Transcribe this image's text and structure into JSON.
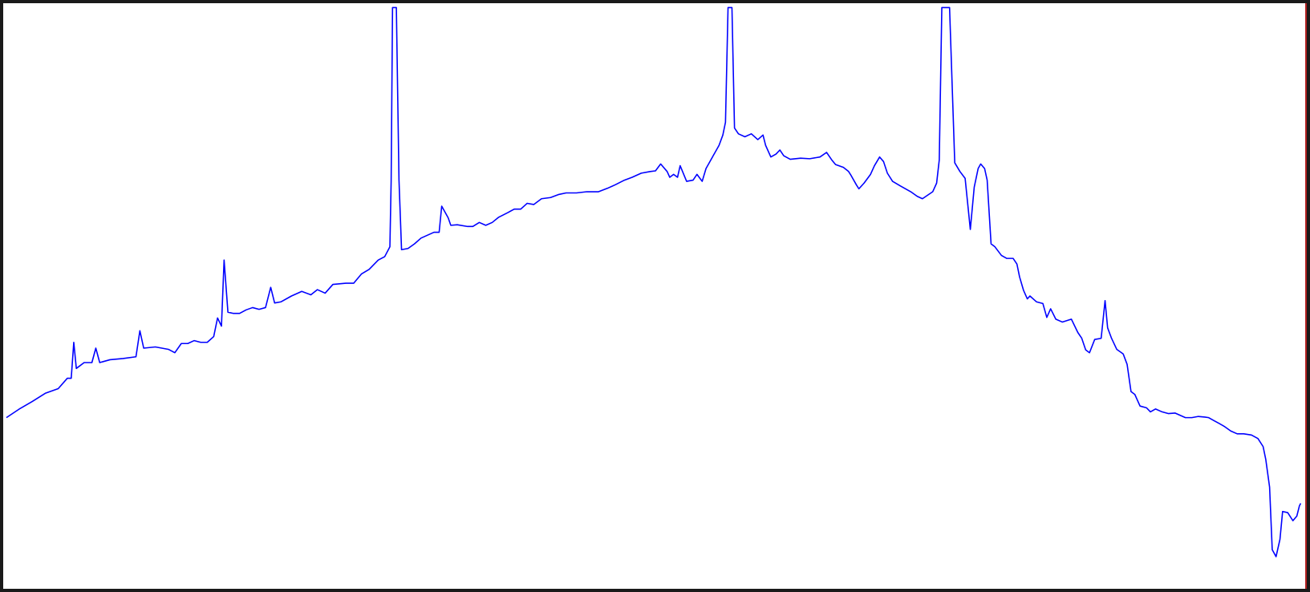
{
  "chart_data": {
    "type": "line",
    "title": "",
    "xlabel": "",
    "ylabel": "",
    "grid": false,
    "legend": "none",
    "xlim": [
      0,
      1000
    ],
    "ylim": [
      0,
      1000
    ],
    "series": [
      {
        "color": "#0000ff",
        "points": [
          [
            0,
            290
          ],
          [
            10,
            305
          ],
          [
            20,
            318
          ],
          [
            30,
            332
          ],
          [
            40,
            340
          ],
          [
            47,
            358
          ],
          [
            50,
            358
          ],
          [
            52,
            420
          ],
          [
            54,
            375
          ],
          [
            60,
            385
          ],
          [
            66,
            385
          ],
          [
            69,
            410
          ],
          [
            72,
            385
          ],
          [
            80,
            390
          ],
          [
            90,
            392
          ],
          [
            100,
            395
          ],
          [
            103,
            440
          ],
          [
            106,
            410
          ],
          [
            115,
            412
          ],
          [
            125,
            408
          ],
          [
            130,
            402
          ],
          [
            135,
            418
          ],
          [
            140,
            418
          ],
          [
            145,
            423
          ],
          [
            150,
            420
          ],
          [
            155,
            420
          ],
          [
            160,
            430
          ],
          [
            163,
            462
          ],
          [
            166,
            448
          ],
          [
            168,
            562
          ],
          [
            171,
            472
          ],
          [
            175,
            470
          ],
          [
            180,
            470
          ],
          [
            185,
            476
          ],
          [
            190,
            480
          ],
          [
            195,
            477
          ],
          [
            200,
            480
          ],
          [
            204,
            515
          ],
          [
            207,
            488
          ],
          [
            212,
            490
          ],
          [
            220,
            500
          ],
          [
            228,
            508
          ],
          [
            235,
            502
          ],
          [
            240,
            511
          ],
          [
            246,
            505
          ],
          [
            252,
            520
          ],
          [
            262,
            522
          ],
          [
            268,
            522
          ],
          [
            274,
            538
          ],
          [
            280,
            546
          ],
          [
            287,
            562
          ],
          [
            292,
            568
          ],
          [
            296,
            585
          ],
          [
            297,
            700
          ],
          [
            298,
            998
          ],
          [
            301,
            998
          ],
          [
            303,
            700
          ],
          [
            305,
            580
          ],
          [
            310,
            582
          ],
          [
            315,
            590
          ],
          [
            320,
            600
          ],
          [
            330,
            610
          ],
          [
            334,
            610
          ],
          [
            336,
            655
          ],
          [
            341,
            635
          ],
          [
            343,
            622
          ],
          [
            348,
            623
          ],
          [
            356,
            620
          ],
          [
            360,
            620
          ],
          [
            365,
            627
          ],
          [
            370,
            622
          ],
          [
            375,
            627
          ],
          [
            380,
            636
          ],
          [
            387,
            644
          ],
          [
            392,
            650
          ],
          [
            397,
            650
          ],
          [
            402,
            660
          ],
          [
            407,
            658
          ],
          [
            413,
            668
          ],
          [
            420,
            670
          ],
          [
            426,
            675
          ],
          [
            432,
            678
          ],
          [
            440,
            678
          ],
          [
            448,
            680
          ],
          [
            457,
            680
          ],
          [
            464,
            686
          ],
          [
            470,
            692
          ],
          [
            477,
            700
          ],
          [
            483,
            705
          ],
          [
            490,
            712
          ],
          [
            497,
            715
          ],
          [
            501,
            716
          ],
          [
            505,
            728
          ],
          [
            510,
            715
          ],
          [
            512,
            705
          ],
          [
            515,
            710
          ],
          [
            518,
            705
          ],
          [
            520,
            725
          ],
          [
            525,
            698
          ],
          [
            530,
            700
          ],
          [
            533,
            710
          ],
          [
            537,
            698
          ],
          [
            540,
            720
          ],
          [
            545,
            740
          ],
          [
            550,
            760
          ],
          [
            553,
            778
          ],
          [
            555,
            800
          ],
          [
            557,
            998
          ],
          [
            560,
            998
          ],
          [
            562,
            790
          ],
          [
            565,
            780
          ],
          [
            570,
            775
          ],
          [
            575,
            780
          ],
          [
            580,
            770
          ],
          [
            584,
            778
          ],
          [
            586,
            760
          ],
          [
            590,
            740
          ],
          [
            594,
            745
          ],
          [
            597,
            752
          ],
          [
            600,
            742
          ],
          [
            605,
            736
          ],
          [
            613,
            738
          ],
          [
            620,
            737
          ],
          [
            628,
            740
          ],
          [
            633,
            748
          ],
          [
            637,
            735
          ],
          [
            640,
            727
          ],
          [
            646,
            722
          ],
          [
            650,
            715
          ],
          [
            652,
            708
          ],
          [
            656,
            692
          ],
          [
            658,
            685
          ],
          [
            662,
            695
          ],
          [
            667,
            710
          ],
          [
            670,
            725
          ],
          [
            674,
            740
          ],
          [
            677,
            732
          ],
          [
            680,
            712
          ],
          [
            684,
            698
          ],
          [
            690,
            690
          ],
          [
            698,
            680
          ],
          [
            703,
            672
          ],
          [
            707,
            668
          ],
          [
            715,
            680
          ],
          [
            718,
            695
          ],
          [
            720,
            735
          ],
          [
            722,
            998
          ],
          [
            728,
            998
          ],
          [
            732,
            730
          ],
          [
            736,
            715
          ],
          [
            740,
            703
          ],
          [
            744,
            615
          ],
          [
            747,
            688
          ],
          [
            750,
            720
          ],
          [
            752,
            728
          ],
          [
            755,
            720
          ],
          [
            757,
            700
          ],
          [
            760,
            590
          ],
          [
            763,
            585
          ],
          [
            768,
            570
          ],
          [
            772,
            565
          ],
          [
            777,
            565
          ],
          [
            780,
            555
          ],
          [
            782,
            533
          ],
          [
            785,
            510
          ],
          [
            788,
            495
          ],
          [
            790,
            500
          ],
          [
            795,
            490
          ],
          [
            800,
            487
          ],
          [
            803,
            463
          ],
          [
            806,
            478
          ],
          [
            810,
            460
          ],
          [
            815,
            455
          ],
          [
            822,
            460
          ],
          [
            827,
            437
          ],
          [
            830,
            427
          ],
          [
            833,
            407
          ],
          [
            836,
            402
          ],
          [
            840,
            425
          ],
          [
            845,
            427
          ],
          [
            848,
            492
          ],
          [
            850,
            445
          ],
          [
            853,
            427
          ],
          [
            857,
            408
          ],
          [
            862,
            400
          ],
          [
            865,
            382
          ],
          [
            868,
            335
          ],
          [
            871,
            330
          ],
          [
            875,
            310
          ],
          [
            880,
            307
          ],
          [
            883,
            300
          ],
          [
            887,
            305
          ],
          [
            892,
            300
          ],
          [
            897,
            297
          ],
          [
            902,
            298
          ],
          [
            910,
            290
          ],
          [
            915,
            290
          ],
          [
            920,
            292
          ],
          [
            925,
            291
          ],
          [
            928,
            290
          ],
          [
            932,
            285
          ],
          [
            936,
            280
          ],
          [
            940,
            275
          ],
          [
            945,
            267
          ],
          [
            950,
            262
          ],
          [
            955,
            262
          ],
          [
            961,
            260
          ],
          [
            966,
            254
          ],
          [
            970,
            240
          ],
          [
            972,
            218
          ],
          [
            975,
            170
          ],
          [
            977,
            62
          ],
          [
            980,
            50
          ],
          [
            983,
            80
          ],
          [
            985,
            128
          ],
          [
            989,
            126
          ],
          [
            993,
            112
          ],
          [
            996,
            120
          ],
          [
            998,
            138
          ],
          [
            999,
            142
          ]
        ]
      }
    ]
  }
}
